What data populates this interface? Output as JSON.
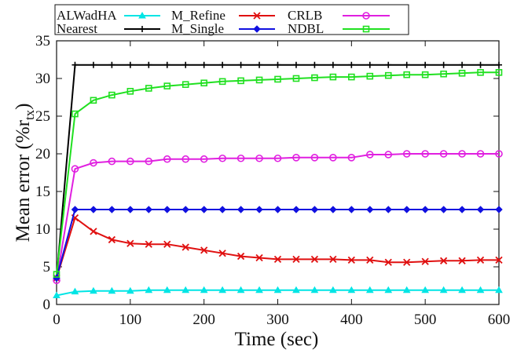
{
  "chart_data": {
    "type": "line",
    "title": "",
    "xlabel": "Time (sec)",
    "ylabel_main": "Mean error (%r",
    "ylabel_sub": "tx",
    "ylabel_close": ")",
    "xlim": [
      0,
      600
    ],
    "ylim": [
      0,
      35
    ],
    "x_ticks": [
      0,
      100,
      200,
      300,
      400,
      500,
      600
    ],
    "x_tick_labels": [
      "0",
      "100",
      "200",
      "300",
      "400",
      "500",
      "600"
    ],
    "y_ticks": [
      0,
      5,
      10,
      15,
      20,
      25,
      30,
      35
    ],
    "y_tick_labels": [
      "0",
      "5",
      "10",
      "15",
      "20",
      "25",
      "30",
      "35"
    ],
    "grid": false,
    "legend_position": "top",
    "x": [
      0,
      25,
      50,
      75,
      100,
      125,
      150,
      175,
      200,
      225,
      250,
      275,
      300,
      325,
      350,
      375,
      400,
      425,
      450,
      475,
      500,
      525,
      550,
      575,
      600
    ],
    "series": [
      {
        "name": "ALWadHA",
        "color": "#00e5e5",
        "marker": "triangle",
        "values": [
          1.2,
          1.7,
          1.8,
          1.8,
          1.8,
          1.9,
          1.9,
          1.9,
          1.9,
          1.9,
          1.9,
          1.9,
          1.9,
          1.9,
          1.9,
          1.9,
          1.9,
          1.9,
          1.9,
          1.9,
          1.9,
          1.9,
          1.9,
          1.9,
          1.9
        ]
      },
      {
        "name": "M_Refine",
        "color": "#e01010",
        "marker": "x",
        "values": [
          3.5,
          11.5,
          9.7,
          8.6,
          8.1,
          8.0,
          8.0,
          7.6,
          7.2,
          6.8,
          6.4,
          6.2,
          6.0,
          6.0,
          6.0,
          6.0,
          5.9,
          5.9,
          5.6,
          5.6,
          5.7,
          5.8,
          5.8,
          5.9,
          5.9
        ]
      },
      {
        "name": "CRLB",
        "color": "#e020e0",
        "marker": "circle",
        "values": [
          3.2,
          18.0,
          18.8,
          19.0,
          19.0,
          19.0,
          19.3,
          19.3,
          19.3,
          19.4,
          19.4,
          19.4,
          19.4,
          19.5,
          19.5,
          19.5,
          19.5,
          19.9,
          19.9,
          20.0,
          20.0,
          20.0,
          20.0,
          20.0,
          20.0
        ]
      },
      {
        "name": "Nearest",
        "color": "#000000",
        "marker": "plus",
        "values": [
          3.5,
          31.8,
          31.8,
          31.8,
          31.8,
          31.8,
          31.8,
          31.8,
          31.8,
          31.8,
          31.8,
          31.8,
          31.8,
          31.8,
          31.8,
          31.8,
          31.8,
          31.8,
          31.8,
          31.8,
          31.8,
          31.8,
          31.8,
          31.8,
          31.8
        ]
      },
      {
        "name": "M_Single",
        "color": "#1010e0",
        "marker": "diamond",
        "values": [
          3.5,
          12.6,
          12.6,
          12.6,
          12.6,
          12.6,
          12.6,
          12.6,
          12.6,
          12.6,
          12.6,
          12.6,
          12.6,
          12.6,
          12.6,
          12.6,
          12.6,
          12.6,
          12.6,
          12.6,
          12.6,
          12.6,
          12.6,
          12.6,
          12.6
        ]
      },
      {
        "name": "NDBL",
        "color": "#20e020",
        "marker": "square",
        "values": [
          4.0,
          25.3,
          27.1,
          27.8,
          28.3,
          28.7,
          29.0,
          29.2,
          29.4,
          29.6,
          29.7,
          29.8,
          29.9,
          30.0,
          30.1,
          30.2,
          30.2,
          30.3,
          30.4,
          30.5,
          30.5,
          30.6,
          30.7,
          30.8,
          30.8
        ]
      }
    ]
  }
}
